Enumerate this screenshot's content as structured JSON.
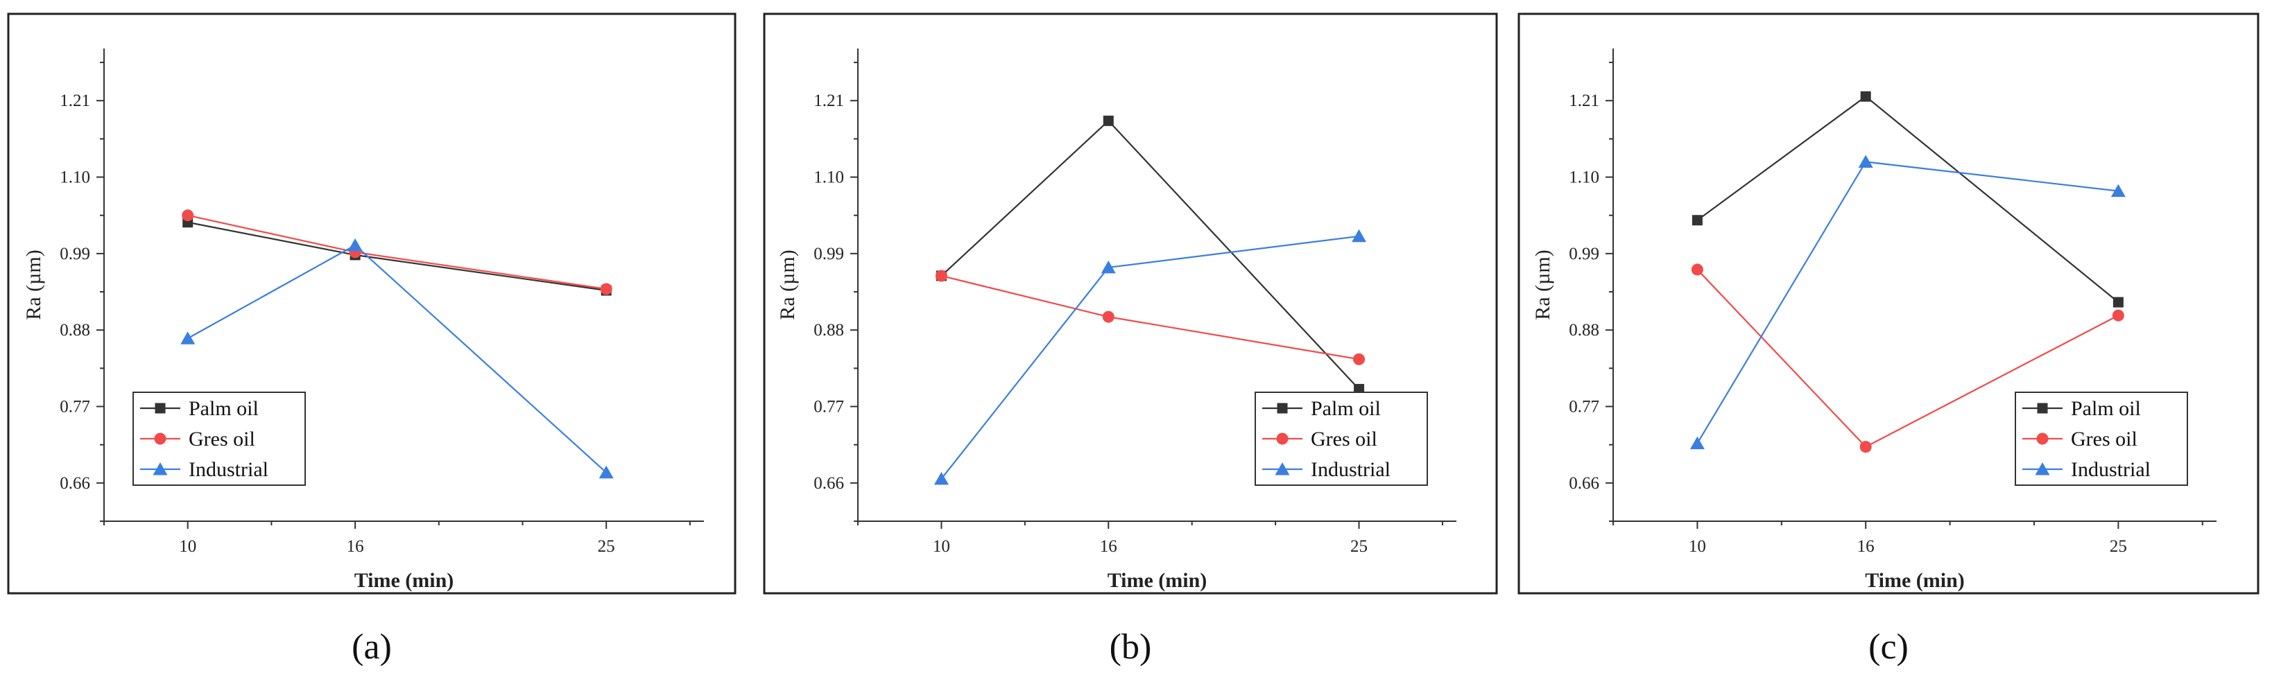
{
  "colors": {
    "palm": "#333333",
    "gres": "#f24a4a",
    "industrial": "#3a7fe0",
    "axis": "#333333",
    "frame": "#222222"
  },
  "chart_data": [
    {
      "type": "line",
      "caption": "(a)",
      "xlabel": "Time (min)",
      "ylabel": "Ra (µm)",
      "x": [
        10,
        16,
        25
      ],
      "x_ticks": [
        10,
        16,
        25
      ],
      "y_ticks": [
        0.66,
        0.77,
        0.88,
        0.99,
        1.1,
        1.21
      ],
      "y_tick_labels": [
        "0.66",
        "0.77",
        "0.88",
        "0.99",
        "1.10",
        "1.21"
      ],
      "xlim": [
        7,
        28.5
      ],
      "ylim": [
        0.605,
        1.285
      ],
      "legend_position": "bottom-left",
      "series": [
        {
          "name": "Palm oil",
          "marker": "square",
          "values": [
            1.035,
            0.988,
            0.937
          ]
        },
        {
          "name": "Gres oil",
          "marker": "circle",
          "values": [
            1.045,
            0.992,
            0.939
          ]
        },
        {
          "name": "Industrial",
          "marker": "triangle",
          "values": [
            0.868,
            1.002,
            0.675
          ]
        }
      ]
    },
    {
      "type": "line",
      "caption": "(b)",
      "xlabel": "Time (min)",
      "ylabel": "Ra (µm)",
      "x": [
        10,
        16,
        25
      ],
      "x_ticks": [
        10,
        16,
        25
      ],
      "y_ticks": [
        0.66,
        0.77,
        0.88,
        0.99,
        1.1,
        1.21
      ],
      "y_tick_labels": [
        "0.66",
        "0.77",
        "0.88",
        "0.99",
        "1.10",
        "1.21"
      ],
      "xlim": [
        7,
        28.5
      ],
      "ylim": [
        0.605,
        1.285
      ],
      "legend_position": "bottom-right",
      "series": [
        {
          "name": "Palm oil",
          "marker": "square",
          "values": [
            0.958,
            1.181,
            0.795
          ]
        },
        {
          "name": "Gres oil",
          "marker": "circle",
          "values": [
            0.958,
            0.899,
            0.838
          ]
        },
        {
          "name": "Industrial",
          "marker": "triangle",
          "values": [
            0.666,
            0.97,
            1.015
          ]
        }
      ]
    },
    {
      "type": "line",
      "caption": "(c)",
      "xlabel": "Time (min)",
      "ylabel": "Ra (µm)",
      "x": [
        10,
        16,
        25
      ],
      "x_ticks": [
        10,
        16,
        25
      ],
      "y_ticks": [
        0.66,
        0.77,
        0.88,
        0.99,
        1.1,
        1.21
      ],
      "y_tick_labels": [
        "0.66",
        "0.77",
        "0.88",
        "0.99",
        "1.10",
        "1.21"
      ],
      "xlim": [
        7,
        28.5
      ],
      "ylim": [
        0.605,
        1.285
      ],
      "legend_position": "bottom-right",
      "series": [
        {
          "name": "Palm oil",
          "marker": "square",
          "values": [
            1.038,
            1.216,
            0.92
          ]
        },
        {
          "name": "Gres oil",
          "marker": "circle",
          "values": [
            0.967,
            0.712,
            0.901
          ]
        },
        {
          "name": "Industrial",
          "marker": "triangle",
          "values": [
            0.717,
            1.122,
            1.08
          ]
        }
      ]
    }
  ]
}
